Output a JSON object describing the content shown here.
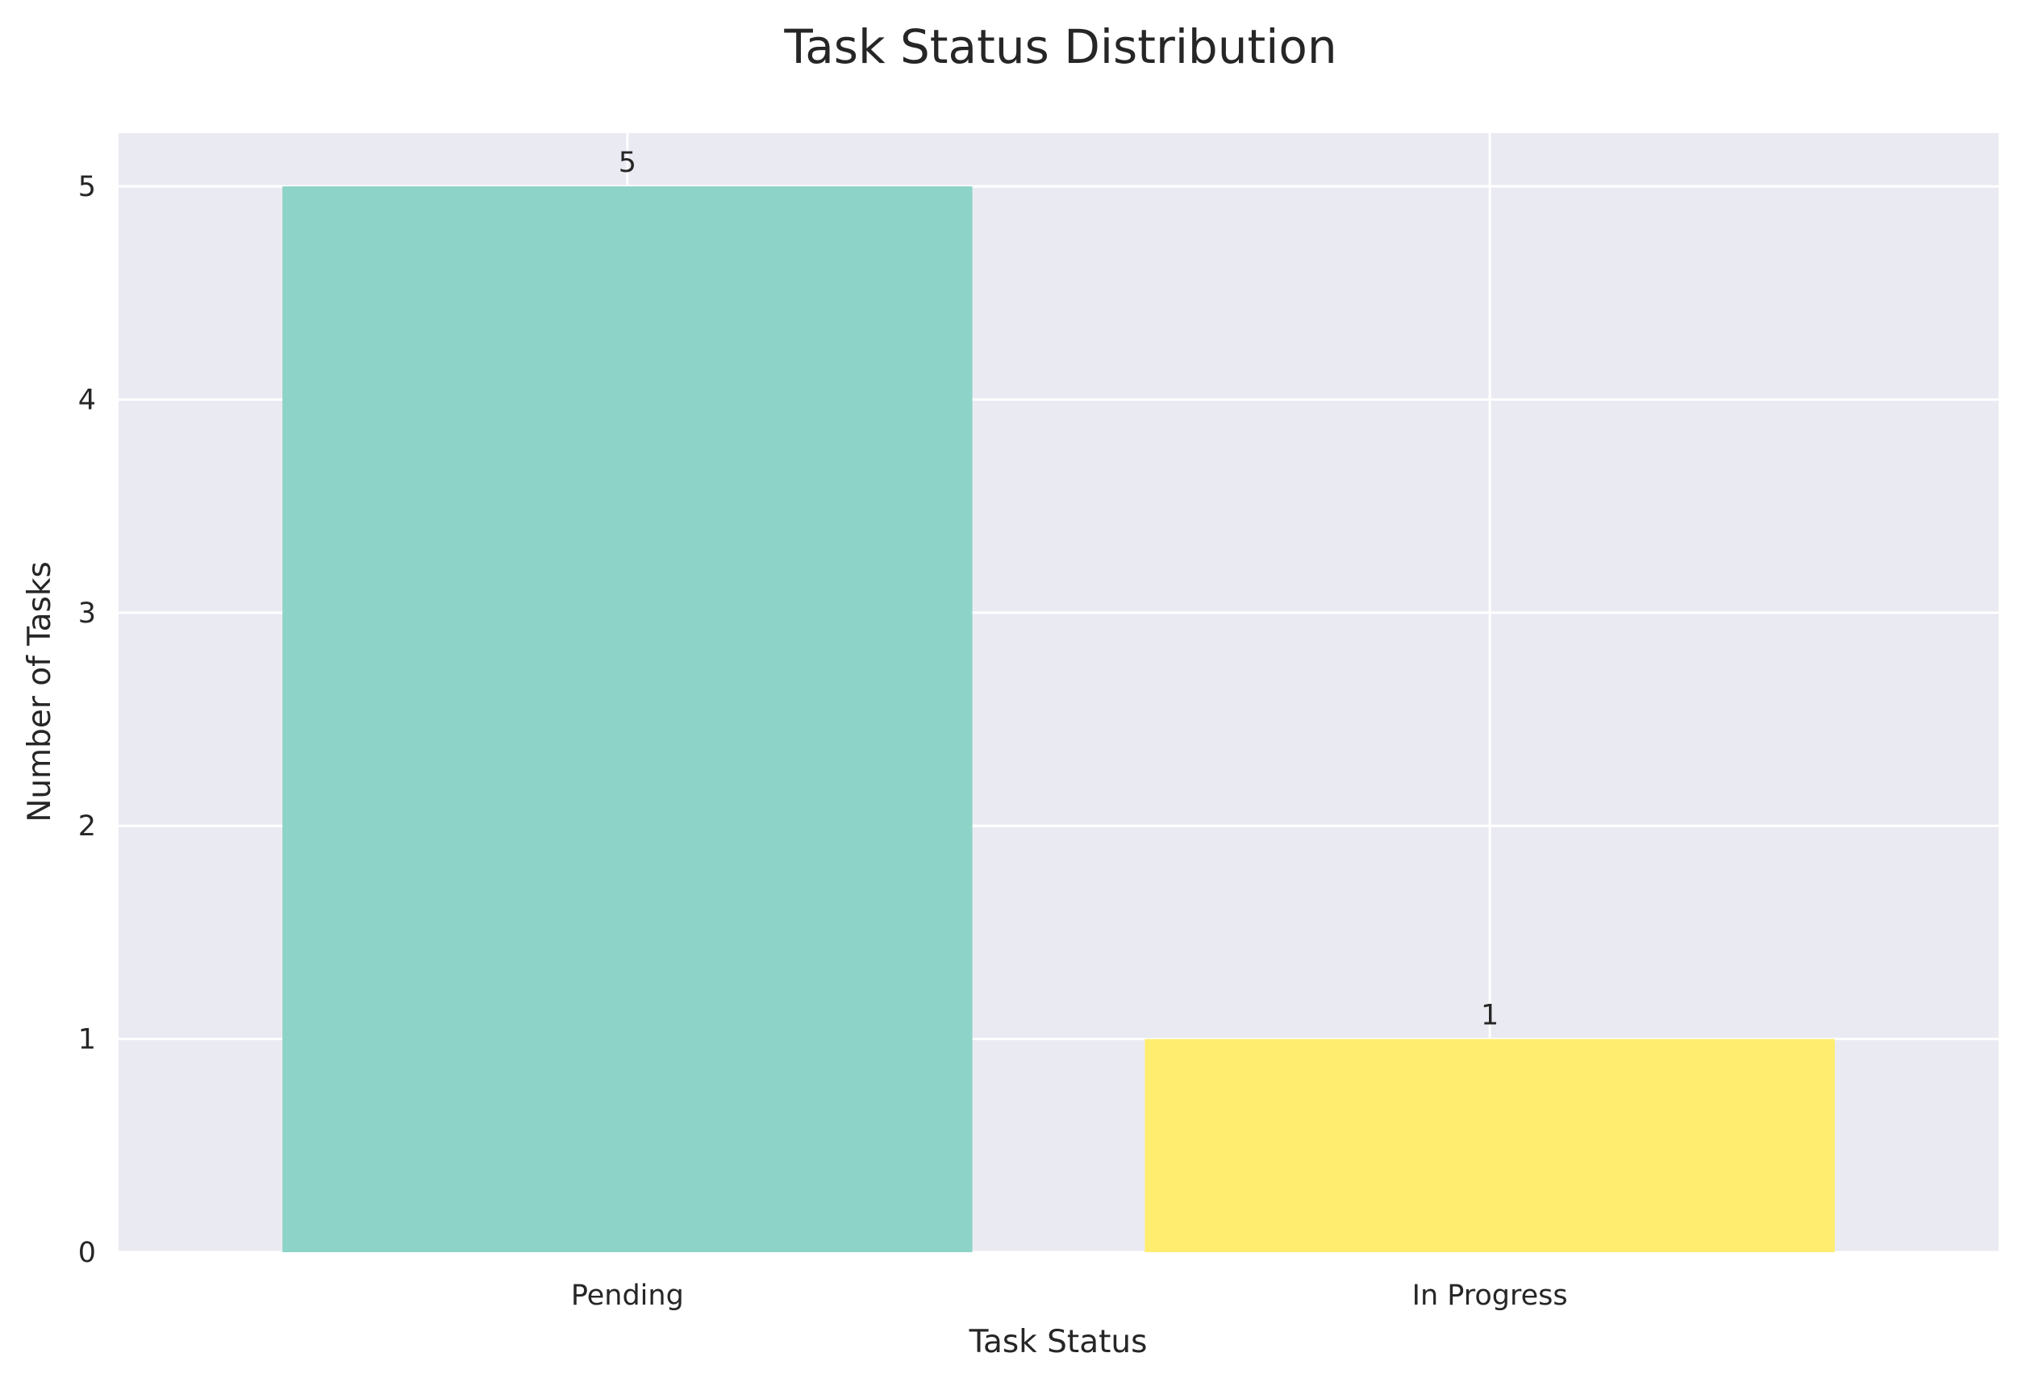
{
  "chart_data": {
    "type": "bar",
    "title": "Task Status Distribution",
    "xlabel": "Task Status",
    "ylabel": "Number of Tasks",
    "categories": [
      "Pending",
      "In Progress"
    ],
    "values": [
      5,
      1
    ],
    "data_labels": [
      "5",
      "1"
    ],
    "colors": [
      "#8ed3c7",
      "#ffed6f"
    ],
    "ylim": [
      0,
      5.25
    ],
    "yticks": [
      0,
      1,
      2,
      3,
      4,
      5
    ],
    "ytick_labels": [
      "0",
      "1",
      "2",
      "3",
      "4",
      "5"
    ],
    "grid": true,
    "background": "#eaeaf2",
    "grid_color": "#ffffff"
  }
}
